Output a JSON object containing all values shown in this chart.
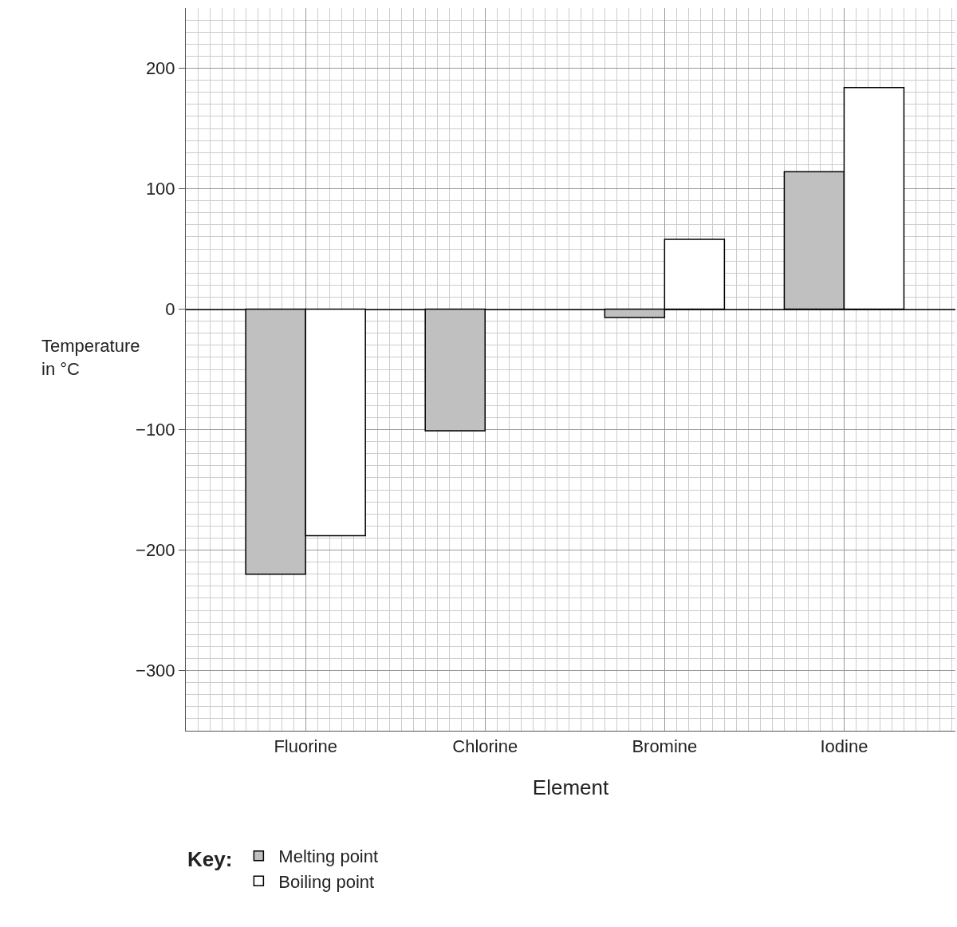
{
  "chart_data": {
    "type": "bar",
    "xlabel": "Element",
    "ylabel": "Temperature\nin °C",
    "legend_title": "Key:",
    "categories": [
      "Fluorine",
      "Chlorine",
      "Bromine",
      "Iodine"
    ],
    "series": [
      {
        "name": "Melting point",
        "color": "#c0c0c0",
        "values": [
          -220,
          -101,
          -7,
          114
        ]
      },
      {
        "name": "Boiling point",
        "color": "#ffffff",
        "values": [
          -188,
          null,
          58,
          184
        ]
      }
    ],
    "ylim": [
      -350,
      250
    ],
    "yticks": [
      {
        "value": -300,
        "label": "−300"
      },
      {
        "value": -200,
        "label": "−200"
      },
      {
        "value": -100,
        "label": "−100"
      },
      0,
      100,
      200
    ],
    "grid": true,
    "legend": "bottom"
  }
}
